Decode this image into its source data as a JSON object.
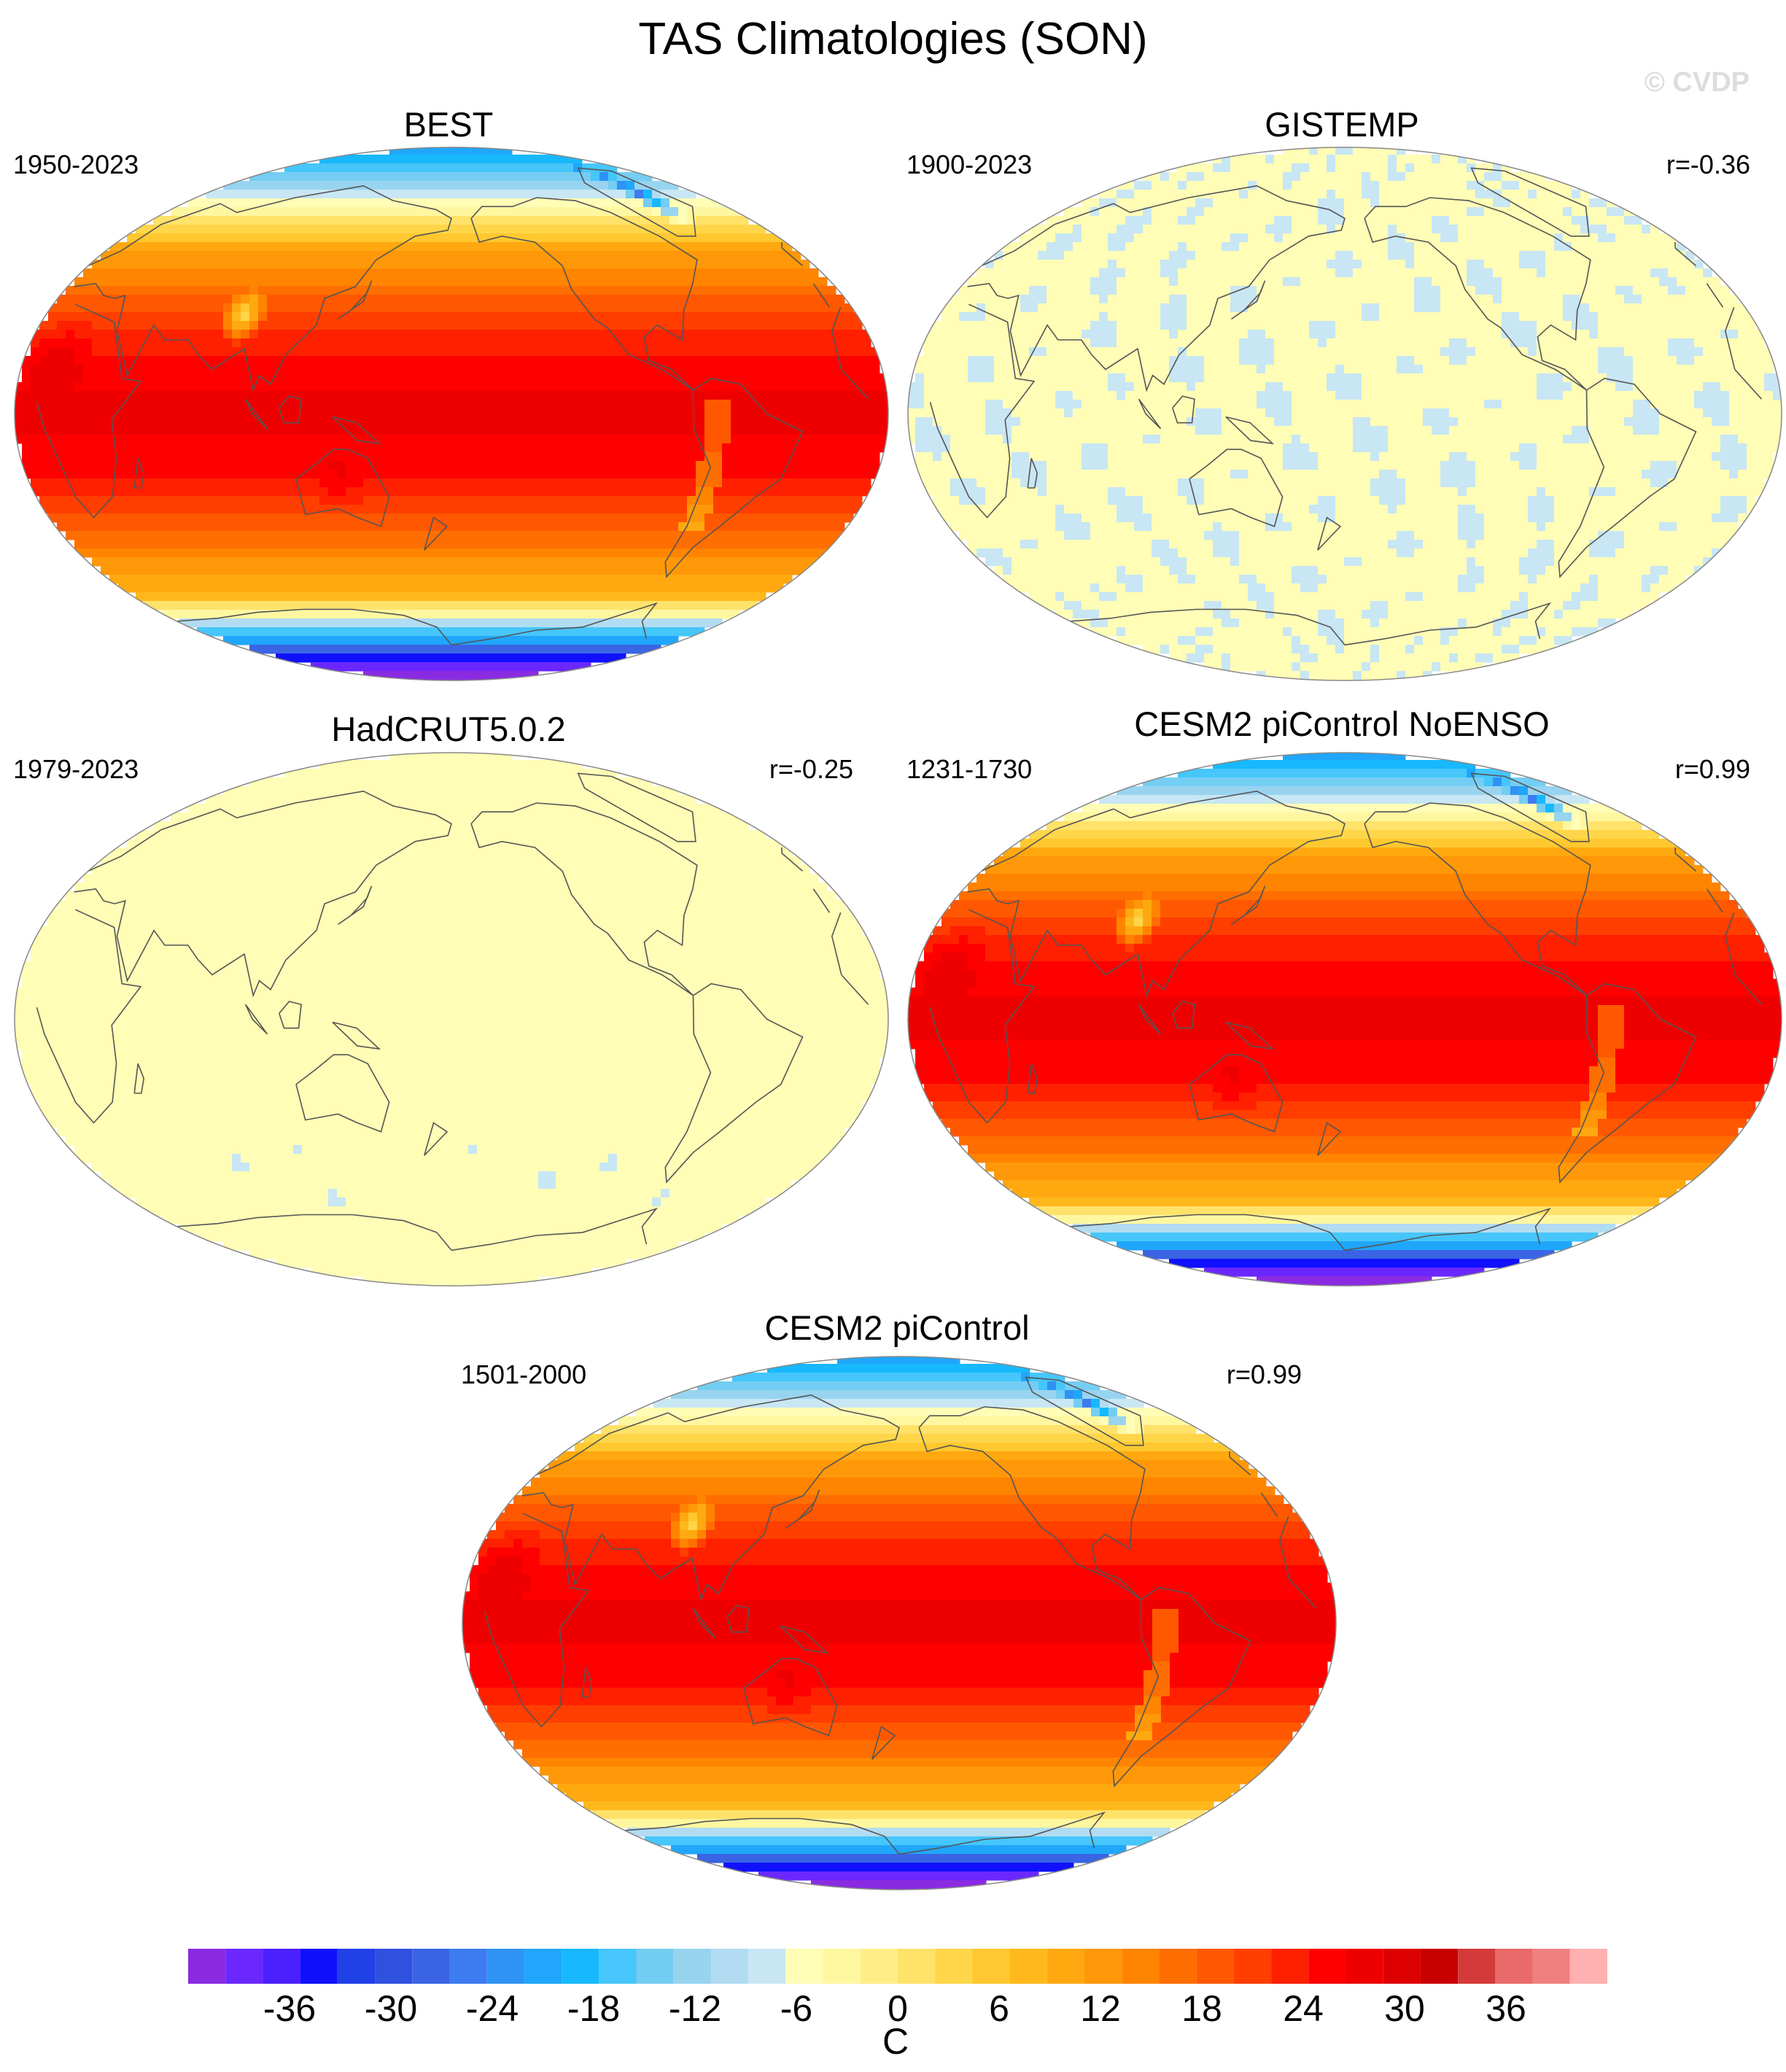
{
  "title": "TAS Climatologies (SON)",
  "watermark": "© CVDP",
  "panels": [
    {
      "title": "BEST",
      "period": "1950-2023",
      "corr": "",
      "field": "climatology"
    },
    {
      "title": "GISTEMP",
      "period": "1900-2023",
      "corr": "r=-0.36",
      "field": "near-zero"
    },
    {
      "title": "HadCRUT5.0.2",
      "period": "1979-2023",
      "corr": "r=-0.25",
      "field": "near-zero"
    },
    {
      "title": "CESM2 piControl NoENSO",
      "period": "1231-1730",
      "corr": "r=0.99",
      "field": "climatology"
    },
    {
      "title": "CESM2 piControl",
      "period": "1501-2000",
      "corr": "r=0.99",
      "field": "climatology"
    }
  ],
  "colorbar": {
    "unit": "C",
    "tick_labels": [
      "-36",
      "-30",
      "-24",
      "-18",
      "-12",
      "-6",
      "0",
      "6",
      "12",
      "18",
      "24",
      "30",
      "36"
    ],
    "tick_values": [
      -36,
      -30,
      -24,
      -18,
      -12,
      -6,
      0,
      6,
      12,
      18,
      24,
      30,
      36
    ],
    "levels_min": -42,
    "levels_max": 42,
    "level_step": 2,
    "colors": [
      "#8a2be2",
      "#6a28ff",
      "#4a20ff",
      "#1010ff",
      "#2040e8",
      "#3050e0",
      "#3a64e4",
      "#3c7cf0",
      "#2f92f5",
      "#20a6fa",
      "#18b8fc",
      "#46c6fa",
      "#74cdf2",
      "#98d4f0",
      "#b2dcf2",
      "#c8e6f4",
      "#fffdb6",
      "#fff7a0",
      "#ffee88",
      "#ffe26a",
      "#ffd64a",
      "#ffc830",
      "#ffb81c",
      "#ffa810",
      "#ff9808",
      "#ff8400",
      "#ff6e00",
      "#ff5800",
      "#ff3e00",
      "#ff2000",
      "#ff0000",
      "#ee0000",
      "#dc0000",
      "#c80000",
      "#d43a3a",
      "#e86a6a",
      "#f08080",
      "#ffb0b0"
    ]
  },
  "chart_data": {
    "type": "heatmap",
    "variable": "TAS",
    "season": "SON",
    "maps": [
      {
        "name": "BEST",
        "period": "1950-2023",
        "approx_range": [
          -42,
          32
        ]
      },
      {
        "name": "GISTEMP",
        "period": "1900-2023",
        "r": -0.36,
        "approx_range": [
          -2,
          2
        ]
      },
      {
        "name": "HadCRUT5.0.2",
        "period": "1979-2023",
        "r": -0.25,
        "approx_range": [
          -2,
          2
        ]
      },
      {
        "name": "CESM2 piControl NoENSO",
        "period": "1231-1730",
        "r": 0.99,
        "approx_range": [
          -42,
          32
        ]
      },
      {
        "name": "CESM2 piControl",
        "period": "1501-2000",
        "r": 0.99,
        "approx_range": [
          -42,
          32
        ]
      }
    ],
    "colorbar_range": [
      -42,
      42
    ],
    "unit": "C"
  }
}
